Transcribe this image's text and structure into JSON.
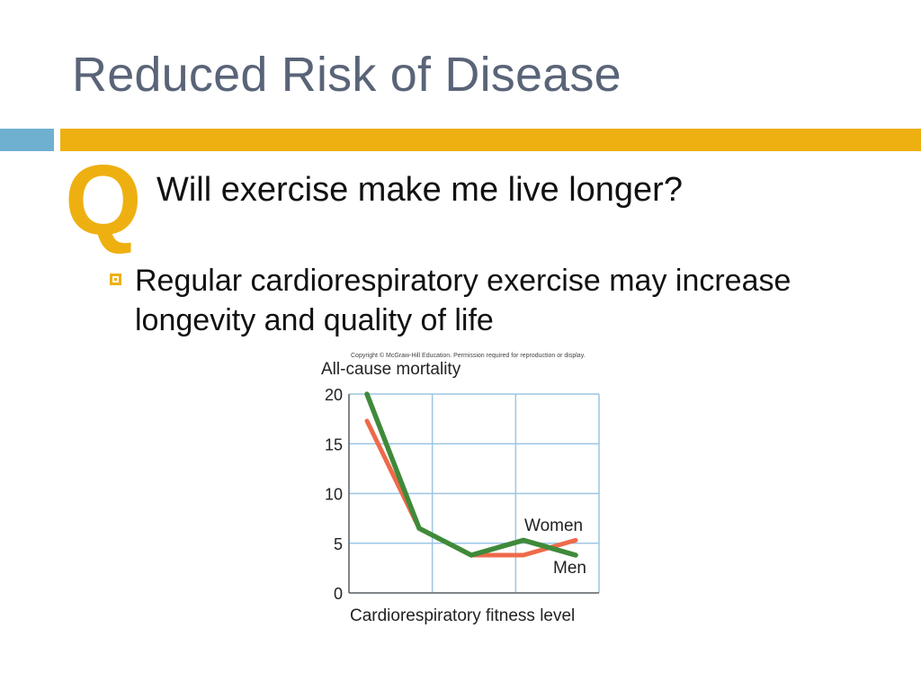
{
  "slide": {
    "title": "Reduced Risk of Disease",
    "q_letter": "Q",
    "question": "Will exercise make me live longer?",
    "bullet": "Regular cardiorespiratory exercise may increase longevity and quality of life",
    "colors": {
      "title": "#5a6478",
      "accent_gold": "#eeb011",
      "accent_blue": "#6fb0d1"
    }
  },
  "chart_data": {
    "type": "line",
    "copyright": "Copyright © McGraw-Hill Education. Permission required for reproduction or display.",
    "ylabel": "All-cause mortality",
    "xlabel": "Cardiorespiratory fitness level",
    "ylim": [
      0,
      20
    ],
    "yticks": [
      0,
      5,
      10,
      15,
      20
    ],
    "x": [
      1,
      2,
      3,
      4,
      5
    ],
    "grid": true,
    "series": [
      {
        "name": "Women",
        "color": "#ee6a4a",
        "values": [
          17.3,
          6.5,
          3.8,
          3.8,
          5.3
        ]
      },
      {
        "name": "Men",
        "color": "#3f8a3a",
        "values": [
          20,
          6.5,
          3.8,
          5.3,
          3.8
        ]
      }
    ]
  }
}
